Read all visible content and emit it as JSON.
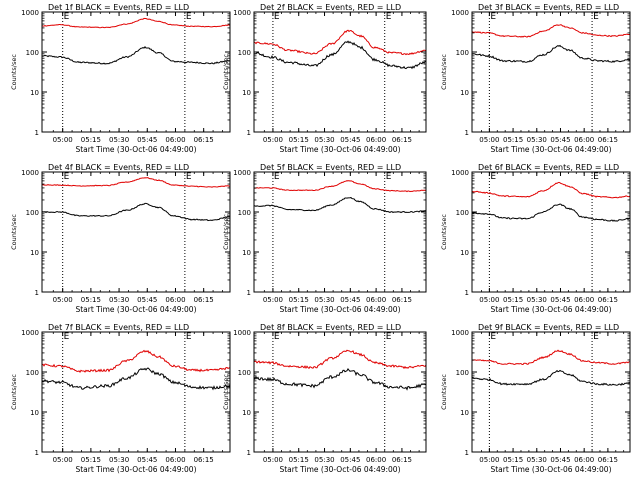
{
  "figure": {
    "time_labels": [
      "05:00",
      "05:15",
      "05:30",
      "05:45",
      "06:00",
      "06:15"
    ],
    "ytick_labels": [
      "1",
      "10",
      "100",
      "1000"
    ],
    "marker": "E",
    "colors": {
      "events": "#000000",
      "lld": "#e00000",
      "axes": "#000000"
    }
  },
  "chart_data": [
    {
      "type": "line",
      "title": "Det 1f BLACK = Events, RED = LLD",
      "xlabel": "Start Time (30-Oct-06 04:49:00)",
      "ylabel": "Counts/sec",
      "yscale": "log",
      "ylim": [
        1,
        1000
      ],
      "x_range_minutes": [
        0,
        100
      ],
      "xticks_minutes": [
        11,
        26,
        41,
        56,
        71,
        86
      ],
      "vlines_minutes": [
        11,
        76
      ],
      "series": [
        {
          "name": "Events",
          "color": "#000000",
          "points": [
            [
              0,
              80
            ],
            [
              10,
              75
            ],
            [
              20,
              55
            ],
            [
              35,
              52
            ],
            [
              45,
              75
            ],
            [
              55,
              130
            ],
            [
              62,
              95
            ],
            [
              70,
              58
            ],
            [
              80,
              55
            ],
            [
              90,
              52
            ],
            [
              100,
              60
            ]
          ],
          "noise": 0.04
        },
        {
          "name": "LLD",
          "color": "#e00000",
          "points": [
            [
              0,
              450
            ],
            [
              10,
              480
            ],
            [
              20,
              420
            ],
            [
              35,
              410
            ],
            [
              45,
              500
            ],
            [
              55,
              680
            ],
            [
              62,
              580
            ],
            [
              70,
              470
            ],
            [
              80,
              440
            ],
            [
              90,
              430
            ],
            [
              100,
              470
            ]
          ],
          "noise": 0.02
        }
      ]
    },
    {
      "type": "line",
      "title": "Det 2f BLACK = Events, RED = LLD",
      "xlabel": "Start Time (30-Oct-06 04:49:00)",
      "ylabel": "Counts/sec",
      "yscale": "log",
      "ylim": [
        1,
        1000
      ],
      "x_range_minutes": [
        0,
        100
      ],
      "xticks_minutes": [
        11,
        26,
        41,
        56,
        71,
        86
      ],
      "vlines_minutes": [
        11,
        76
      ],
      "series": [
        {
          "name": "Events",
          "color": "#000000",
          "points": [
            [
              0,
              95
            ],
            [
              10,
              75
            ],
            [
              20,
              55
            ],
            [
              35,
              45
            ],
            [
              45,
              85
            ],
            [
              55,
              180
            ],
            [
              62,
              130
            ],
            [
              70,
              65
            ],
            [
              80,
              45
            ],
            [
              90,
              40
            ],
            [
              100,
              55
            ]
          ],
          "noise": 0.07
        },
        {
          "name": "LLD",
          "color": "#e00000",
          "points": [
            [
              0,
              170
            ],
            [
              10,
              160
            ],
            [
              20,
              110
            ],
            [
              35,
              90
            ],
            [
              45,
              160
            ],
            [
              55,
              340
            ],
            [
              62,
              250
            ],
            [
              70,
              130
            ],
            [
              80,
              95
            ],
            [
              90,
              90
            ],
            [
              100,
              110
            ]
          ],
          "noise": 0.05
        }
      ]
    },
    {
      "type": "line",
      "title": "Det 3f BLACK = Events, RED = LLD",
      "xlabel": "Start Time (30-Oct-06 04:49:00)",
      "ylabel": "Counts/sec",
      "yscale": "log",
      "ylim": [
        1,
        1000
      ],
      "x_range_minutes": [
        0,
        100
      ],
      "xticks_minutes": [
        11,
        26,
        41,
        56,
        71,
        86
      ],
      "vlines_minutes": [
        11,
        76
      ],
      "series": [
        {
          "name": "Events",
          "color": "#000000",
          "points": [
            [
              0,
              90
            ],
            [
              10,
              80
            ],
            [
              20,
              60
            ],
            [
              35,
              58
            ],
            [
              45,
              85
            ],
            [
              55,
              140
            ],
            [
              62,
              110
            ],
            [
              70,
              70
            ],
            [
              80,
              60
            ],
            [
              90,
              58
            ],
            [
              100,
              65
            ]
          ],
          "noise": 0.05
        },
        {
          "name": "LLD",
          "color": "#e00000",
          "points": [
            [
              0,
              320
            ],
            [
              10,
              300
            ],
            [
              20,
              250
            ],
            [
              35,
              240
            ],
            [
              45,
              330
            ],
            [
              55,
              480
            ],
            [
              62,
              400
            ],
            [
              70,
              300
            ],
            [
              80,
              260
            ],
            [
              90,
              250
            ],
            [
              100,
              280
            ]
          ],
          "noise": 0.03
        }
      ]
    },
    {
      "type": "line",
      "title": "Det 4f BLACK = Events, RED = LLD",
      "xlabel": "Start Time (30-Oct-06 04:49:00)",
      "ylabel": "Counts/sec",
      "yscale": "log",
      "ylim": [
        1,
        1000
      ],
      "x_range_minutes": [
        0,
        100
      ],
      "xticks_minutes": [
        11,
        26,
        41,
        56,
        71,
        86
      ],
      "vlines_minutes": [
        11,
        76
      ],
      "series": [
        {
          "name": "Events",
          "color": "#000000",
          "points": [
            [
              0,
              100
            ],
            [
              10,
              100
            ],
            [
              20,
              80
            ],
            [
              35,
              80
            ],
            [
              45,
              110
            ],
            [
              55,
              160
            ],
            [
              62,
              130
            ],
            [
              70,
              80
            ],
            [
              80,
              65
            ],
            [
              90,
              62
            ],
            [
              100,
              75
            ]
          ],
          "noise": 0.03
        },
        {
          "name": "LLD",
          "color": "#e00000",
          "points": [
            [
              0,
              480
            ],
            [
              10,
              470
            ],
            [
              20,
              450
            ],
            [
              35,
              460
            ],
            [
              45,
              560
            ],
            [
              55,
              720
            ],
            [
              62,
              620
            ],
            [
              70,
              470
            ],
            [
              80,
              440
            ],
            [
              90,
              420
            ],
            [
              100,
              450
            ]
          ],
          "noise": 0.02
        }
      ]
    },
    {
      "type": "line",
      "title": "Det 5f BLACK = Events, RED = LLD",
      "xlabel": "Start Time (30-Oct-06 04:49:00)",
      "ylabel": "Counts/sec",
      "yscale": "log",
      "ylim": [
        1,
        1000
      ],
      "x_range_minutes": [
        0,
        100
      ],
      "xticks_minutes": [
        11,
        26,
        41,
        56,
        71,
        86
      ],
      "vlines_minutes": [
        11,
        76
      ],
      "series": [
        {
          "name": "Events",
          "color": "#000000",
          "points": [
            [
              0,
              140
            ],
            [
              10,
              145
            ],
            [
              20,
              115
            ],
            [
              35,
              110
            ],
            [
              45,
              150
            ],
            [
              55,
              230
            ],
            [
              62,
              180
            ],
            [
              70,
              120
            ],
            [
              80,
              100
            ],
            [
              90,
              100
            ],
            [
              100,
              105
            ]
          ],
          "noise": 0.03
        },
        {
          "name": "LLD",
          "color": "#e00000",
          "points": [
            [
              0,
              400
            ],
            [
              10,
              400
            ],
            [
              20,
              350
            ],
            [
              35,
              350
            ],
            [
              45,
              440
            ],
            [
              55,
              600
            ],
            [
              62,
              500
            ],
            [
              70,
              380
            ],
            [
              80,
              340
            ],
            [
              90,
              330
            ],
            [
              100,
              350
            ]
          ],
          "noise": 0.02
        }
      ]
    },
    {
      "type": "line",
      "title": "Det 6f BLACK = Events, RED = LLD",
      "xlabel": "Start Time (30-Oct-06 04:49:00)",
      "ylabel": "Counts/sec",
      "yscale": "log",
      "ylim": [
        1,
        1000
      ],
      "x_range_minutes": [
        0,
        100
      ],
      "xticks_minutes": [
        11,
        26,
        41,
        56,
        71,
        86
      ],
      "vlines_minutes": [
        11,
        76
      ],
      "series": [
        {
          "name": "Events",
          "color": "#000000",
          "points": [
            [
              0,
              95
            ],
            [
              10,
              90
            ],
            [
              20,
              70
            ],
            [
              35,
              68
            ],
            [
              45,
              100
            ],
            [
              55,
              155
            ],
            [
              62,
              120
            ],
            [
              70,
              75
            ],
            [
              80,
              65
            ],
            [
              90,
              60
            ],
            [
              100,
              68
            ]
          ],
          "noise": 0.04
        },
        {
          "name": "LLD",
          "color": "#e00000",
          "points": [
            [
              0,
              330
            ],
            [
              10,
              300
            ],
            [
              20,
              250
            ],
            [
              35,
              240
            ],
            [
              45,
              340
            ],
            [
              55,
              540
            ],
            [
              62,
              430
            ],
            [
              70,
              290
            ],
            [
              80,
              240
            ],
            [
              90,
              230
            ],
            [
              100,
              250
            ]
          ],
          "noise": 0.03
        }
      ]
    },
    {
      "type": "line",
      "title": "Det 7f BLACK = Events, RED = LLD",
      "xlabel": "Start Time (30-Oct-06 04:49:00)",
      "ylabel": "Counts/sec",
      "yscale": "log",
      "ylim": [
        1,
        1000
      ],
      "x_range_minutes": [
        0,
        100
      ],
      "xticks_minutes": [
        11,
        26,
        41,
        56,
        71,
        86
      ],
      "vlines_minutes": [
        11,
        76
      ],
      "series": [
        {
          "name": "Events",
          "color": "#000000",
          "points": [
            [
              0,
              60
            ],
            [
              10,
              55
            ],
            [
              20,
              40
            ],
            [
              35,
              45
            ],
            [
              45,
              70
            ],
            [
              55,
              120
            ],
            [
              62,
              90
            ],
            [
              70,
              55
            ],
            [
              80,
              42
            ],
            [
              90,
              40
            ],
            [
              100,
              45
            ]
          ],
          "noise": 0.08
        },
        {
          "name": "LLD",
          "color": "#e00000",
          "points": [
            [
              0,
              150
            ],
            [
              10,
              140
            ],
            [
              20,
              105
            ],
            [
              35,
              110
            ],
            [
              45,
              190
            ],
            [
              55,
              330
            ],
            [
              62,
              240
            ],
            [
              70,
              140
            ],
            [
              80,
              110
            ],
            [
              90,
              110
            ],
            [
              100,
              125
            ]
          ],
          "noise": 0.06
        }
      ]
    },
    {
      "type": "line",
      "title": "Det 8f BLACK = Events, RED = LLD",
      "xlabel": "Start Time (30-Oct-06 04:49:00)",
      "ylabel": "Counts/sec",
      "yscale": "log",
      "ylim": [
        1,
        1000
      ],
      "x_range_minutes": [
        0,
        100
      ],
      "xticks_minutes": [
        11,
        26,
        41,
        56,
        71,
        86
      ],
      "vlines_minutes": [
        11,
        76
      ],
      "series": [
        {
          "name": "Events",
          "color": "#000000",
          "points": [
            [
              0,
              70
            ],
            [
              10,
              65
            ],
            [
              20,
              50
            ],
            [
              35,
              45
            ],
            [
              45,
              75
            ],
            [
              55,
              110
            ],
            [
              62,
              85
            ],
            [
              70,
              55
            ],
            [
              80,
              42
            ],
            [
              90,
              40
            ],
            [
              100,
              48
            ]
          ],
          "noise": 0.09
        },
        {
          "name": "LLD",
          "color": "#e00000",
          "points": [
            [
              0,
              180
            ],
            [
              10,
              170
            ],
            [
              20,
              140
            ],
            [
              35,
              130
            ],
            [
              45,
              220
            ],
            [
              55,
              340
            ],
            [
              62,
              270
            ],
            [
              70,
              170
            ],
            [
              80,
              140
            ],
            [
              90,
              130
            ],
            [
              100,
              145
            ]
          ],
          "noise": 0.06
        }
      ]
    },
    {
      "type": "line",
      "title": "Det 9f BLACK = Events, RED = LLD",
      "xlabel": "Start Time (30-Oct-06 04:49:00)",
      "ylabel": "Counts/sec",
      "yscale": "log",
      "ylim": [
        1,
        1000
      ],
      "x_range_minutes": [
        0,
        100
      ],
      "xticks_minutes": [
        11,
        26,
        41,
        56,
        71,
        86
      ],
      "vlines_minutes": [
        11,
        76
      ],
      "series": [
        {
          "name": "Events",
          "color": "#000000",
          "points": [
            [
              0,
              70
            ],
            [
              10,
              65
            ],
            [
              20,
              50
            ],
            [
              35,
              50
            ],
            [
              45,
              65
            ],
            [
              55,
              105
            ],
            [
              62,
              85
            ],
            [
              70,
              58
            ],
            [
              80,
              50
            ],
            [
              90,
              48
            ],
            [
              100,
              52
            ]
          ],
          "noise": 0.05
        },
        {
          "name": "LLD",
          "color": "#e00000",
          "points": [
            [
              0,
              200
            ],
            [
              10,
              190
            ],
            [
              20,
              160
            ],
            [
              35,
              160
            ],
            [
              45,
              230
            ],
            [
              55,
              340
            ],
            [
              62,
              280
            ],
            [
              70,
              190
            ],
            [
              80,
              170
            ],
            [
              90,
              160
            ],
            [
              100,
              175
            ]
          ],
          "noise": 0.04
        }
      ]
    }
  ]
}
